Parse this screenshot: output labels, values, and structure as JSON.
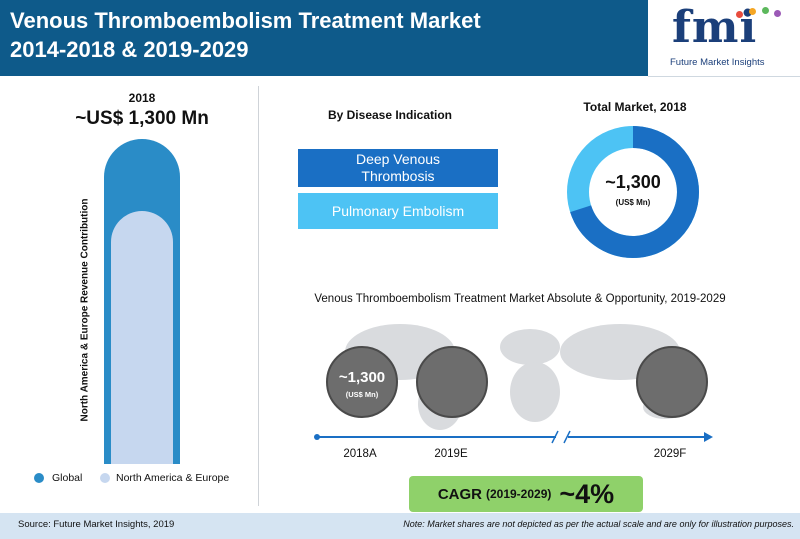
{
  "header": {
    "title_line1": "Venous Thromboembolism Treatment Market",
    "title_line2": "2014-2018 & 2019-2029",
    "logo_text": "fmi",
    "logo_subtitle": "Future Market Insights",
    "logo_dot_colors": [
      "#e84c3d",
      "#f5a623",
      "#5cb85c",
      "#9b59b6"
    ]
  },
  "regional": {
    "year": "2018",
    "total": "~US$ 1,300 Mn",
    "axis_label": "North America & Europe Revenue Contribution",
    "legend": [
      {
        "label": "Global",
        "color": "#2a8cc7"
      },
      {
        "label": "North America & Europe",
        "color": "#c6d7ef"
      }
    ]
  },
  "indication": {
    "title": "By Disease Indication",
    "segments": [
      {
        "label": "Deep Venous Thrombosis",
        "color": "#1a6fc4"
      },
      {
        "label": "Pulmonary Embolism",
        "color": "#4dc3f4"
      }
    ]
  },
  "total_market": {
    "title": "Total Market, 2018",
    "value": "~1,300",
    "unit": "(US$ Mn)",
    "donut_share_deep_venous_thrombosis": 0.7,
    "colors": {
      "dvt": "#1a6fc4",
      "pe": "#4dc3f4"
    }
  },
  "opportunity": {
    "title": "Venous Thromboembolism Treatment Market Absolute & Opportunity, 2019-2029",
    "value_2018": "~1,300",
    "unit_2018": "(US$ Mn)",
    "timeline_labels": [
      "2018A",
      "2019E",
      "2029F"
    ]
  },
  "cagr": {
    "label": "CAGR",
    "period": "(2019-2029)",
    "value": "~4%"
  },
  "footer": {
    "source": "Source: Future Market Insights, 2019",
    "note": "Note: Market shares are not depicted as per the actual scale and are only for illustration purposes."
  }
}
